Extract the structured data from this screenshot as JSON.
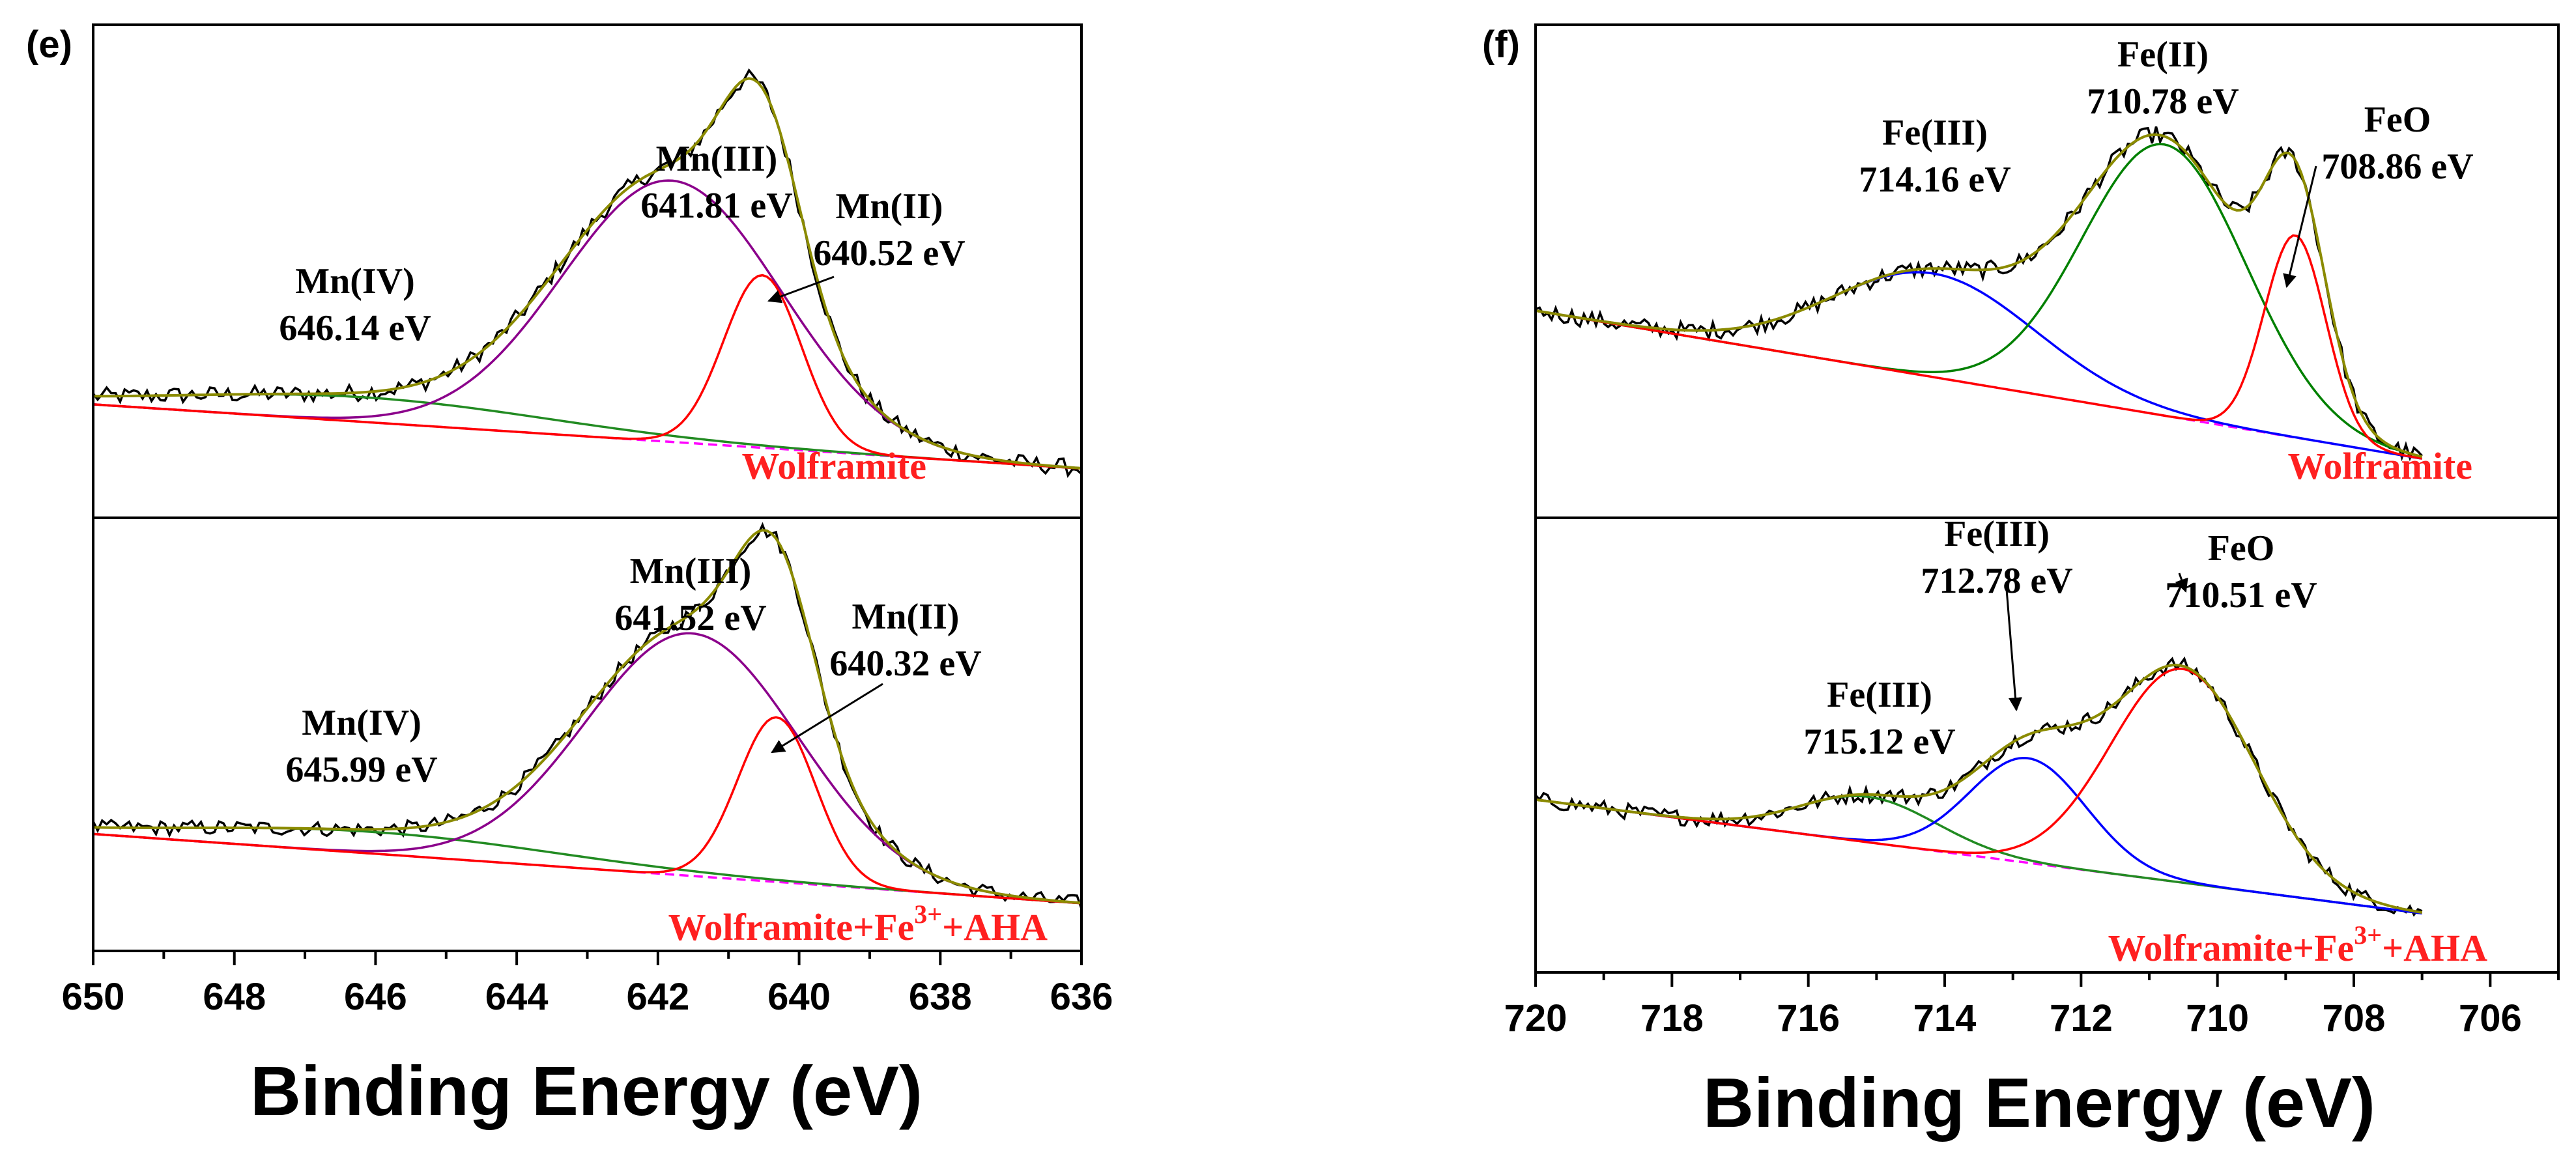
{
  "chart_data": [
    {
      "type": "line",
      "panel_label": "(e)",
      "xlabel": "Binding Energy (eV)",
      "ylabel": "",
      "x_reversed": true,
      "xlim": [
        650,
        636
      ],
      "x_ticks": [
        "650",
        "648",
        "646",
        "644",
        "642",
        "640",
        "638",
        "636"
      ],
      "x_tick_values": [
        650,
        648,
        646,
        644,
        642,
        640,
        638,
        636
      ],
      "ylim": [
        0,
        1
      ],
      "grid": false,
      "subplots": [
        {
          "sample": "Wolframite",
          "baseline": {
            "x": [
              650,
              636
            ],
            "y": [
              0.23,
              0.1
            ]
          },
          "peaks": [
            {
              "name": "Mn(IV)",
              "label": [
                "Mn(IV)",
                "646.14 eV"
              ],
              "center": 646.14,
              "height": 0.05,
              "width": 2.6,
              "color": "#228b22"
            },
            {
              "name": "Mn(III)",
              "label": [
                "Mn(III)",
                "641.81 eV"
              ],
              "center": 641.81,
              "height": 0.53,
              "width": 1.55,
              "color": "#8b008b"
            },
            {
              "name": "Mn(II)",
              "label": [
                "Mn(II)",
                "640.52 eV"
              ],
              "center": 640.52,
              "height": 0.35,
              "width": 0.55,
              "color": "#ff0000"
            }
          ]
        },
        {
          "sample": [
            "Wolframite+Fe",
            "3+",
            "+AHA"
          ],
          "baseline": {
            "x": [
              650,
              636
            ],
            "y": [
              0.27,
              0.11
            ]
          },
          "peaks": [
            {
              "name": "Mn(IV)",
              "label": [
                "Mn(IV)",
                "645.99 eV"
              ],
              "center": 645.99,
              "height": 0.05,
              "width": 2.6,
              "color": "#228b22"
            },
            {
              "name": "Mn(III)",
              "label": [
                "Mn(III)",
                "641.52 eV"
              ],
              "center": 641.52,
              "height": 0.56,
              "width": 1.5,
              "color": "#8b008b"
            },
            {
              "name": "Mn(II)",
              "label": [
                "Mn(II)",
                "640.32 eV"
              ],
              "center": 640.32,
              "height": 0.38,
              "width": 0.55,
              "color": "#ff0000"
            }
          ]
        }
      ]
    },
    {
      "type": "line",
      "panel_label": "(f)",
      "xlabel": "Binding Energy (eV)",
      "ylabel": "",
      "x_reversed": true,
      "xlim": [
        720,
        705
      ],
      "x_ticks": [
        "720",
        "718",
        "716",
        "714",
        "712",
        "710",
        "708",
        "706"
      ],
      "x_tick_values": [
        720,
        718,
        716,
        714,
        712,
        710,
        708,
        706
      ],
      "ylim": [
        0,
        1
      ],
      "grid": false,
      "subplots": [
        {
          "sample": "Wolframite",
          "baseline": {
            "x": [
              720,
              707
            ],
            "y": [
              0.42,
              0.12
            ]
          },
          "peaks": [
            {
              "name": "Fe(III)",
              "label": [
                "Fe(III)",
                "714.16 eV"
              ],
              "center": 714.16,
              "height": 0.21,
              "width": 1.5,
              "color": "#0000ff"
            },
            {
              "name": "Fe(II)",
              "label": [
                "Fe(II)",
                "710.78 eV"
              ],
              "center": 710.78,
              "height": 0.55,
              "width": 1.2,
              "color": "#008000"
            },
            {
              "name": "FeO",
              "label": [
                "FeO",
                "708.86 eV"
              ],
              "center": 708.86,
              "height": 0.41,
              "width": 0.45,
              "color": "#ff0000"
            }
          ]
        },
        {
          "sample": [
            "Wolframite+Fe",
            "3+",
            "+AHA"
          ],
          "baseline": {
            "x": [
              720,
              707
            ],
            "y": [
              0.38,
              0.13
            ]
          },
          "peaks": [
            {
              "name": "Fe(III)",
              "label": [
                "Fe(III)",
                "715.12 eV"
              ],
              "center": 715.12,
              "height": 0.1,
              "width": 1.0,
              "color": "#228b22"
            },
            {
              "name": "Fe(III)",
              "label": [
                "Fe(III)",
                "712.78 eV"
              ],
              "center": 712.78,
              "height": 0.23,
              "width": 0.85,
              "color": "#0000ff"
            },
            {
              "name": "FeO",
              "label": [
                "FeO",
                "710.51 eV"
              ],
              "center": 710.51,
              "height": 0.47,
              "width": 1.05,
              "color": "#ff0000"
            }
          ]
        }
      ]
    }
  ],
  "colors": {
    "raw": "#000000",
    "envelope": "#8b8b00",
    "baseline": "#ff00ff",
    "sample_label": "#ff2020"
  }
}
